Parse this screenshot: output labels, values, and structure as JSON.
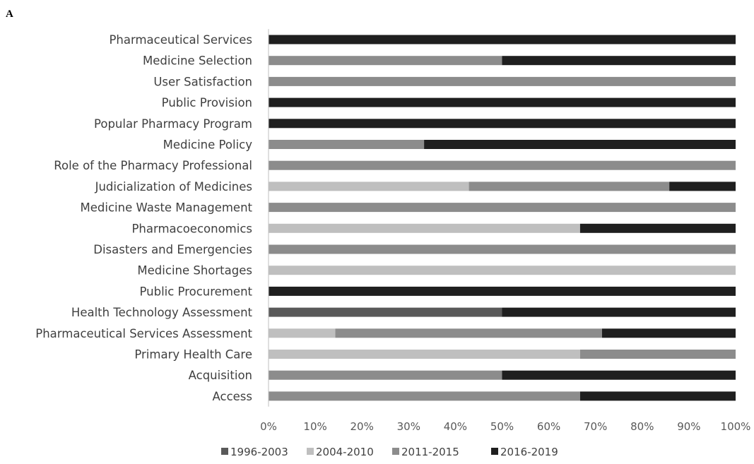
{
  "panel_label": "A",
  "chart_data": {
    "type": "bar",
    "orientation": "horizontal",
    "stacked": "percent",
    "title": "",
    "xlabel": "",
    "ylabel": "",
    "xlim": [
      0,
      100
    ],
    "x_ticks": [
      "0%",
      "10%",
      "20%",
      "30%",
      "40%",
      "50%",
      "60%",
      "70%",
      "80%",
      "90%",
      "100%"
    ],
    "x_tick_values": [
      0,
      10,
      20,
      30,
      40,
      50,
      60,
      70,
      80,
      90,
      100
    ],
    "grid": false,
    "legend_position": "bottom",
    "categories": [
      "Pharmaceutical Services",
      "Medicine Selection",
      "User Satisfaction",
      "Public Provision",
      "Popular Pharmacy Program",
      "Medicine Policy",
      "Role of the Pharmacy Professional",
      "Judicialization of Medicines",
      "Medicine Waste Management",
      "Pharmacoeconomics",
      "Disasters and Emergencies",
      "Medicine Shortages",
      "Public Procurement",
      "Health Technology Assessment",
      "Pharmaceutical Services Assessment",
      "Primary Health Care",
      "Acquisition",
      "Access"
    ],
    "series": [
      {
        "name": "1996-2003",
        "color": "#595959",
        "values": [
          0,
          0,
          0,
          0,
          0,
          0,
          0,
          0,
          0,
          0,
          0,
          0,
          0,
          50,
          0,
          0,
          0,
          0
        ]
      },
      {
        "name": "2004-2010",
        "color": "#bfbfbf",
        "values": [
          0,
          0,
          0,
          0,
          0,
          0,
          0,
          42.9,
          0,
          66.7,
          0,
          100,
          0,
          0,
          14.3,
          66.7,
          0,
          0
        ]
      },
      {
        "name": "2011-2015",
        "color": "#8c8c8c",
        "values": [
          0,
          50,
          100,
          0,
          0,
          33.3,
          100,
          42.9,
          100,
          0,
          100,
          0,
          0,
          0,
          57.1,
          33.3,
          50,
          66.7
        ]
      },
      {
        "name": "2016-2019",
        "color": "#1f1f1f",
        "values": [
          100,
          50,
          0,
          100,
          100,
          66.7,
          0,
          14.2,
          0,
          33.3,
          0,
          0,
          100,
          50,
          28.6,
          0,
          50,
          33.3
        ]
      }
    ]
  }
}
